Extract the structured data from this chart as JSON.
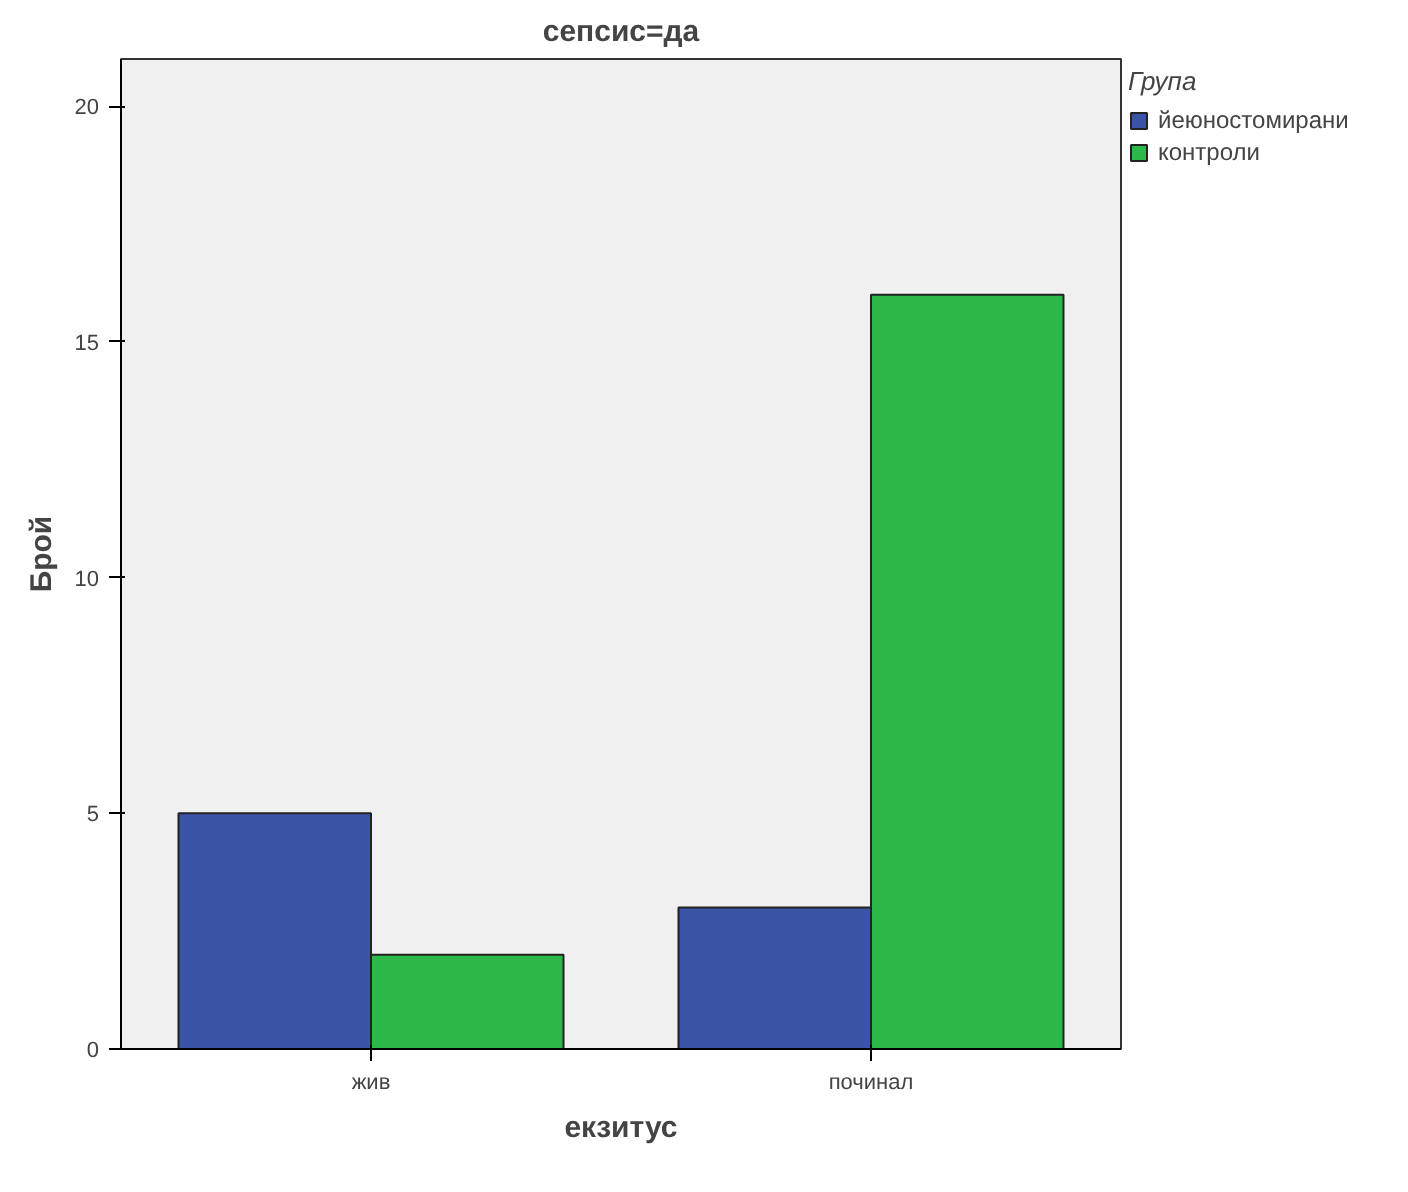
{
  "chart_data": {
    "type": "bar",
    "title": "сепсис=да",
    "xlabel": "екзитус",
    "ylabel": "Брой",
    "legend_title": "Група",
    "categories": [
      "жив",
      "починал"
    ],
    "series": [
      {
        "name": "йеюностомирани",
        "color": "#3c54a8",
        "values": [
          5,
          3
        ]
      },
      {
        "name": "контроли",
        "color": "#2db84a",
        "values": [
          2,
          16
        ]
      }
    ],
    "ylim": [
      0,
      21
    ],
    "yticks": [
      0,
      5,
      10,
      15,
      20
    ],
    "grid": false,
    "legend": "top right"
  }
}
